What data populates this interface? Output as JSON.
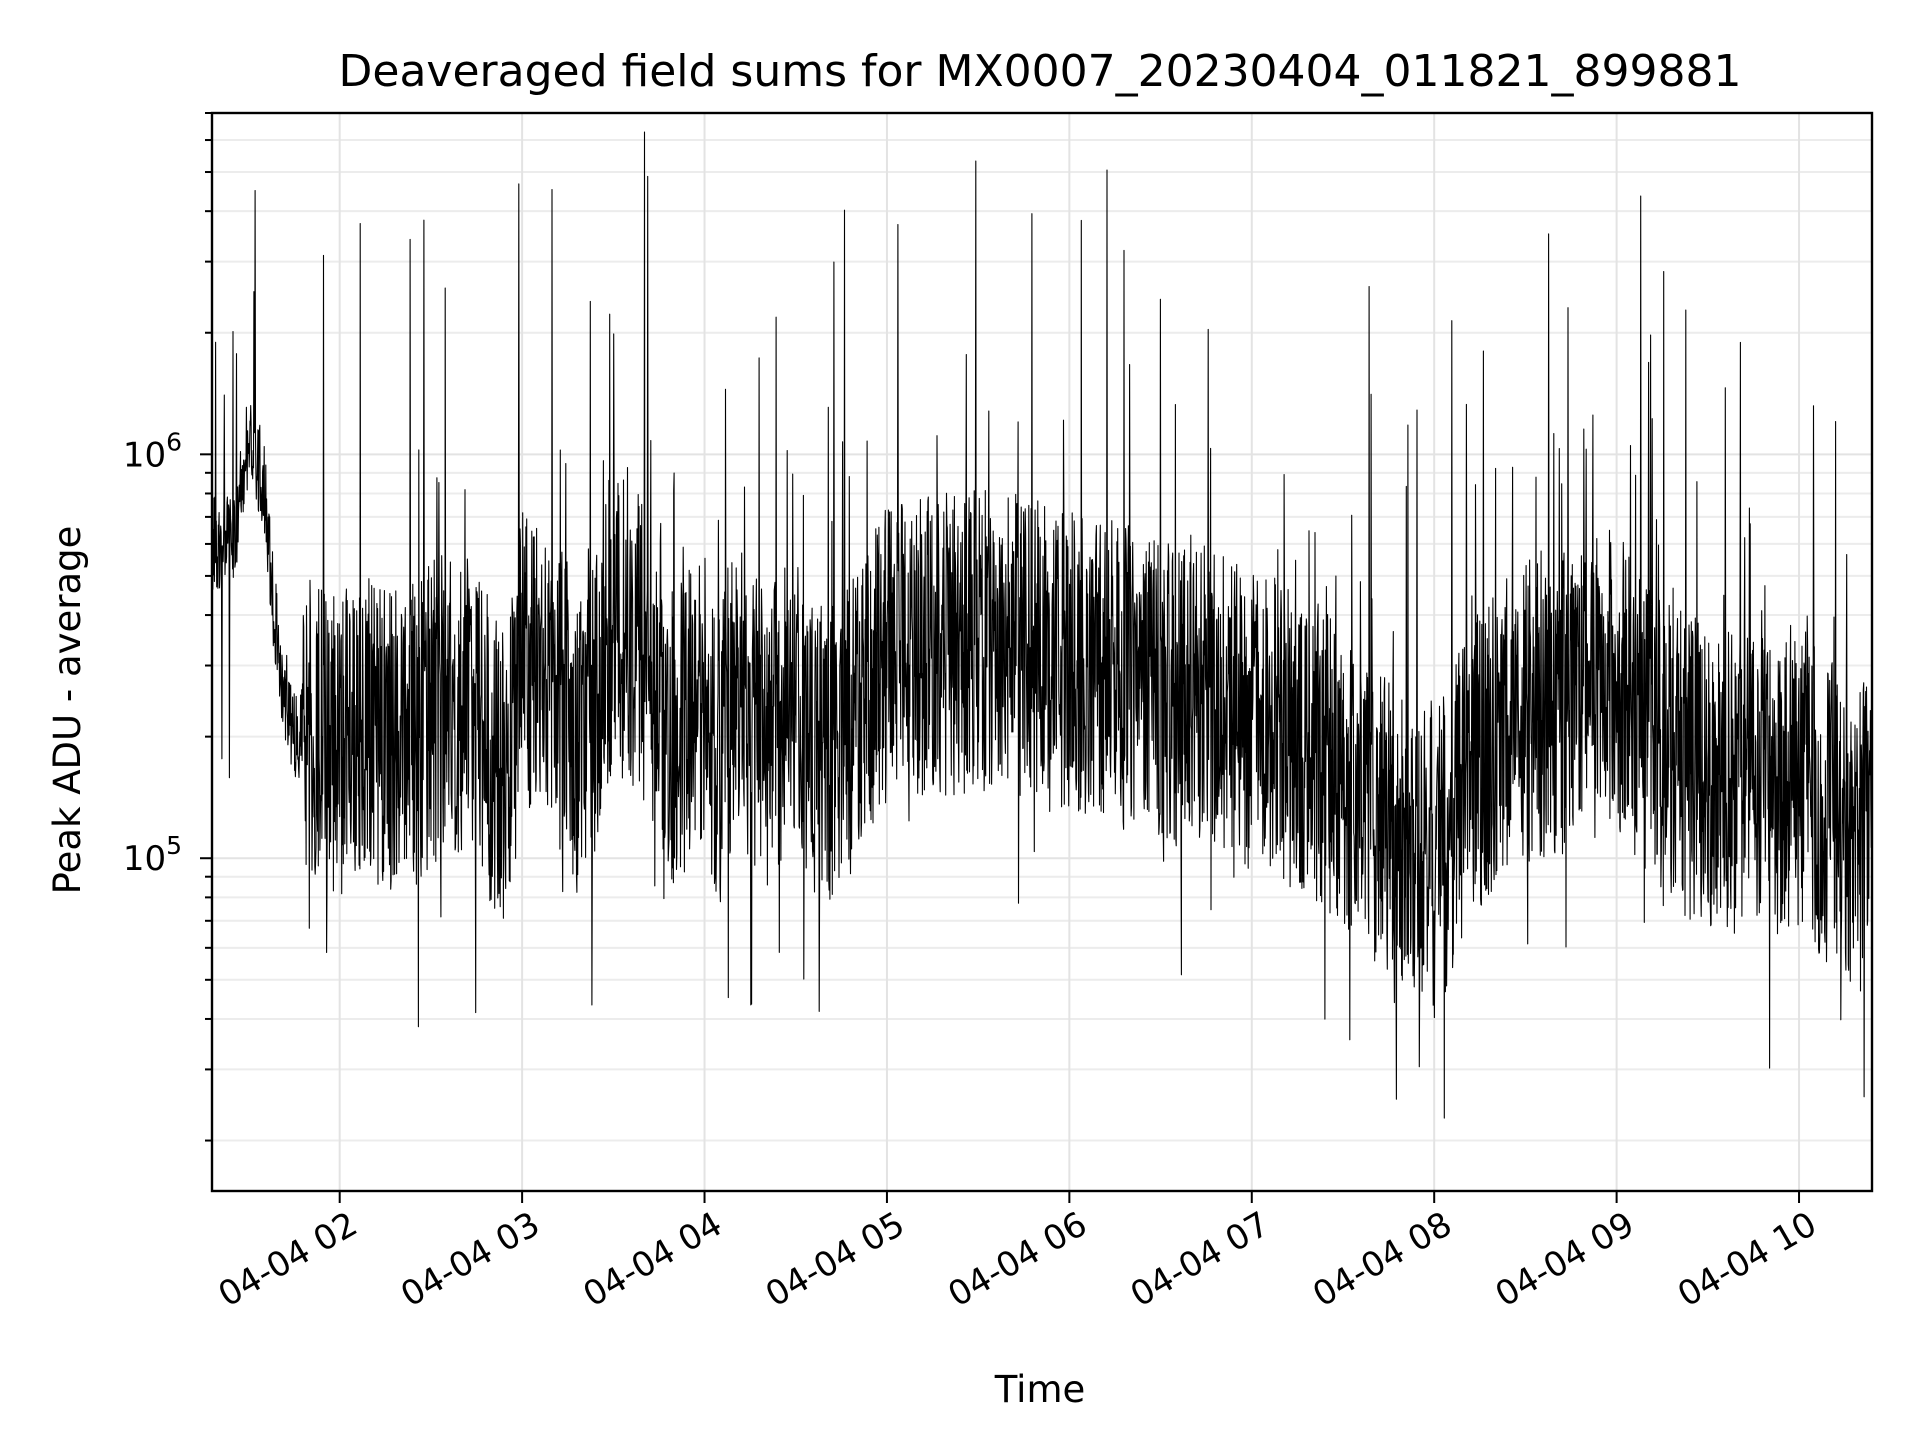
{
  "chart_data": {
    "type": "line",
    "title": "Deaveraged field sums for MX0007_20230404_011821_899881",
    "xlabel": "Time",
    "ylabel": "Peak ADU - average",
    "yscale": "log",
    "ylim": [
      15000,
      7000000
    ],
    "xlim": [
      "2023-04-04 01:18",
      "2023-04-04 10:24"
    ],
    "grid": true,
    "x_ticks": [
      {
        "value": "2023-04-04 02:00",
        "label": "04-04 02"
      },
      {
        "value": "2023-04-04 03:00",
        "label": "04-04 03"
      },
      {
        "value": "2023-04-04 04:00",
        "label": "04-04 04"
      },
      {
        "value": "2023-04-04 05:00",
        "label": "04-04 05"
      },
      {
        "value": "2023-04-04 06:00",
        "label": "04-04 06"
      },
      {
        "value": "2023-04-04 07:00",
        "label": "04-04 07"
      },
      {
        "value": "2023-04-04 08:00",
        "label": "04-04 08"
      },
      {
        "value": "2023-04-04 09:00",
        "label": "04-04 09"
      },
      {
        "value": "2023-04-04 10:00",
        "label": "04-04 10"
      }
    ],
    "y_ticks": [
      {
        "value": 100000,
        "base": "10",
        "exp": "5"
      },
      {
        "value": 1000000,
        "base": "10",
        "exp": "6"
      }
    ],
    "series": [
      {
        "color": "#000000",
        "x": [
          "2023-04-04 01:18",
          "2023-04-04 01:25",
          "2023-04-04 01:30",
          "2023-04-04 01:35",
          "2023-04-04 01:40",
          "2023-04-04 01:45",
          "2023-04-04 01:50",
          "2023-04-04 01:55",
          "2023-04-04 02:00",
          "2023-04-04 02:10",
          "2023-04-04 02:20",
          "2023-04-04 02:30",
          "2023-04-04 02:40",
          "2023-04-04 02:50",
          "2023-04-04 02:55",
          "2023-04-04 03:00",
          "2023-04-04 03:10",
          "2023-04-04 03:20",
          "2023-04-04 03:30",
          "2023-04-04 03:40",
          "2023-04-04 03:50",
          "2023-04-04 04:00",
          "2023-04-04 04:05",
          "2023-04-04 04:10",
          "2023-04-04 04:20",
          "2023-04-04 04:30",
          "2023-04-04 04:40",
          "2023-04-04 04:50",
          "2023-04-04 05:00",
          "2023-04-04 05:15",
          "2023-04-04 05:30",
          "2023-04-04 05:45",
          "2023-04-04 06:00",
          "2023-04-04 06:15",
          "2023-04-04 06:30",
          "2023-04-04 06:45",
          "2023-04-04 07:00",
          "2023-04-04 07:15",
          "2023-04-04 07:30",
          "2023-04-04 07:45",
          "2023-04-04 08:00",
          "2023-04-04 08:15",
          "2023-04-04 08:30",
          "2023-04-04 08:45",
          "2023-04-04 09:00",
          "2023-04-04 09:15",
          "2023-04-04 09:30",
          "2023-04-04 09:45",
          "2023-04-04 10:00",
          "2023-04-04 10:10",
          "2023-04-04 10:20",
          "2023-04-04 10:24"
        ],
        "y": [
          600000,
          620000,
          1100000,
          850000,
          300000,
          200000,
          220000,
          200000,
          190000,
          210000,
          180000,
          230000,
          250000,
          180000,
          150000,
          320000,
          280000,
          180000,
          380000,
          330000,
          200000,
          250000,
          180000,
          260000,
          200000,
          240000,
          170000,
          230000,
          320000,
          330000,
          350000,
          330000,
          300000,
          290000,
          250000,
          260000,
          220000,
          200000,
          160000,
          120000,
          95000,
          180000,
          230000,
          240000,
          280000,
          180000,
          160000,
          150000,
          160000,
          130000,
          110000,
          150000
        ]
      }
    ]
  }
}
